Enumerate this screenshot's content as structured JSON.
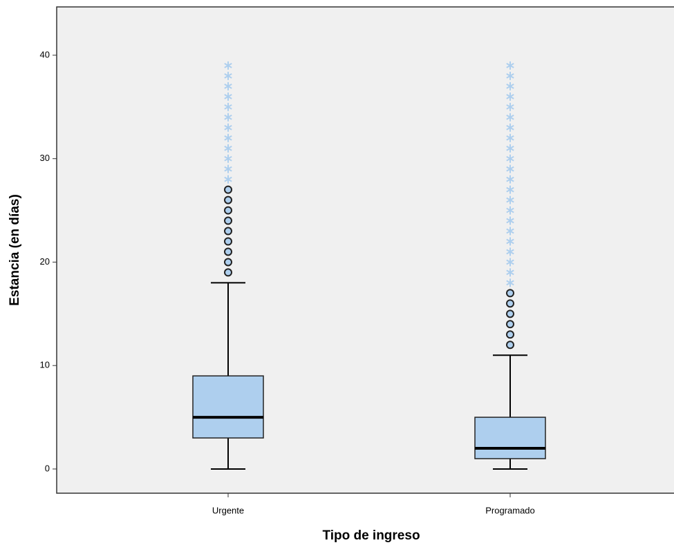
{
  "chart_data": {
    "type": "boxplot",
    "x_label": "Tipo de ingreso",
    "y_label": "Estancia (en días)",
    "categories": [
      "Urgente",
      "Programado"
    ],
    "boxes": [
      {
        "min": 0,
        "q1": 3,
        "median": 5,
        "q3": 9,
        "max": 18,
        "outliers": [
          19,
          20,
          21,
          22,
          23,
          24,
          25,
          26,
          27
        ],
        "extremes": [
          28,
          29,
          30,
          31,
          32,
          33,
          34,
          35,
          36,
          37,
          38,
          39
        ]
      },
      {
        "min": 0,
        "q1": 1,
        "median": 2,
        "q3": 5,
        "max": 11,
        "outliers": [
          12,
          13,
          14,
          15,
          16,
          17
        ],
        "extremes": [
          18,
          19,
          20,
          21,
          22,
          23,
          24,
          25,
          26,
          27,
          28,
          29,
          30,
          31,
          32,
          33,
          34,
          35,
          36,
          37,
          38,
          39
        ]
      }
    ],
    "color": "#aecfee",
    "background": "#f0f0f0",
    "ylim": [
      -2.34,
      44.67
    ],
    "yticks": [
      0,
      10,
      20,
      30,
      40
    ]
  }
}
